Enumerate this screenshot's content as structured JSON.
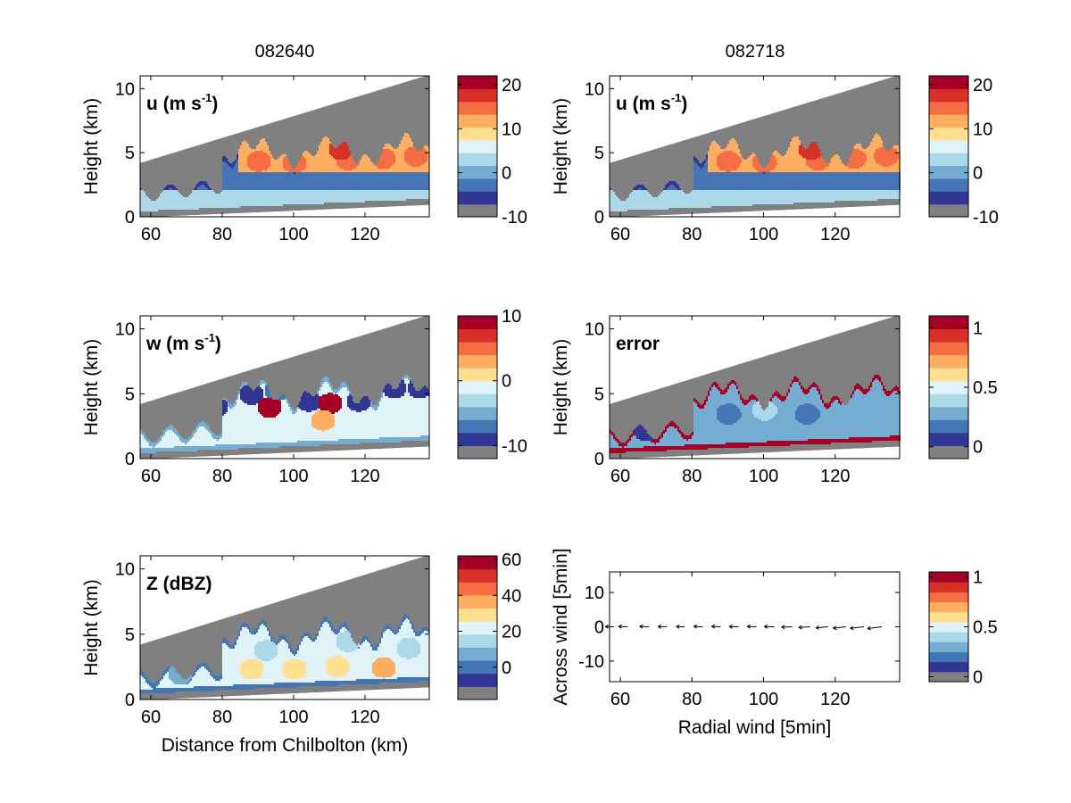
{
  "figure": {
    "column_titles": [
      "082640",
      "082718"
    ]
  },
  "palette": {
    "colormap_bottom_to_top": [
      "#808080",
      "#313695",
      "#4575b4",
      "#74add1",
      "#abd9e9",
      "#e0f3f8",
      "#fee090",
      "#fdae61",
      "#f46d43",
      "#d73027",
      "#a50026"
    ],
    "missing_gray": "#808080",
    "axes_color": "#000000",
    "background": "#ffffff"
  },
  "chart_data": [
    {
      "id": "u_left",
      "type": "heatmap",
      "column_title": "082640",
      "label": "u (m s",
      "label_sup": "-1",
      "label_end": ")",
      "ylabel": "Height (km)",
      "xlabel": "",
      "xlim": [
        57,
        138
      ],
      "ylim": [
        0,
        11
      ],
      "xticks": [
        "60",
        "80",
        "100",
        "120"
      ],
      "yticks": [
        "0",
        "5",
        "10"
      ],
      "colorbar": {
        "range": [
          -10,
          22
        ],
        "ticks": [
          "-10",
          "0",
          "10",
          "20"
        ]
      },
      "blob": {
        "base_level": 2,
        "contour_level": 1,
        "cores": [
          [
            90,
            4.4,
            7.5
          ],
          [
            100,
            4.3,
            7.5
          ],
          [
            115,
            4.5,
            8
          ],
          [
            125,
            4.6,
            7.5
          ],
          [
            134,
            4.8,
            7.5
          ],
          [
            113,
            5.3,
            9
          ]
        ]
      }
    },
    {
      "id": "u_right",
      "type": "heatmap",
      "column_title": "082718",
      "label": "u (m s",
      "label_sup": "-1",
      "label_end": ")",
      "ylabel": "Height (km)",
      "xlabel": "",
      "xlim": [
        57,
        138
      ],
      "ylim": [
        0,
        11
      ],
      "xticks": [
        "60",
        "80",
        "100",
        "120"
      ],
      "yticks": [
        "0",
        "5",
        "10"
      ],
      "colorbar": {
        "range": [
          -10,
          22
        ],
        "ticks": [
          "-10",
          "0",
          "10",
          "20"
        ]
      },
      "blob": {
        "base_level": 2,
        "contour_level": 1,
        "cores": [
          [
            90,
            4.4,
            7.5
          ],
          [
            100,
            4.3,
            7.5
          ],
          [
            115,
            4.5,
            8
          ],
          [
            125,
            4.6,
            7.5
          ],
          [
            134,
            4.8,
            7.5
          ],
          [
            113,
            5.3,
            9
          ]
        ]
      }
    },
    {
      "id": "w_left",
      "type": "heatmap",
      "label": "w (m s",
      "label_sup": "-1",
      "label_end": ")",
      "ylabel": "Height (km)",
      "xlabel": "",
      "xlim": [
        57,
        138
      ],
      "ylim": [
        0,
        11
      ],
      "xticks": [
        "60",
        "80",
        "100",
        "120"
      ],
      "yticks": [
        "0",
        "5",
        "10"
      ],
      "colorbar": {
        "range": [
          -12,
          10
        ],
        "ticks": [
          "-10",
          "0",
          "10"
        ]
      },
      "blob": {
        "base_level": 5,
        "contour_level": 3,
        "cores": [
          [
            68,
            3.4,
            2
          ],
          [
            78,
            4.0,
            1
          ],
          [
            88,
            5.0,
            1
          ],
          [
            95,
            5.3,
            2
          ],
          [
            104,
            4.5,
            1
          ],
          [
            110,
            4.3,
            10
          ],
          [
            118,
            4.5,
            1
          ],
          [
            128,
            5.5,
            1
          ],
          [
            135,
            5.5,
            1
          ],
          [
            93,
            4.0,
            10
          ],
          [
            108,
            3.0,
            7
          ]
        ]
      }
    },
    {
      "id": "error_right",
      "type": "heatmap",
      "label": "error",
      "ylabel": "Height (km)",
      "xlabel": "",
      "xlim": [
        57,
        138
      ],
      "ylim": [
        0,
        11
      ],
      "xticks": [
        "60",
        "80",
        "100",
        "120"
      ],
      "yticks": [
        "0",
        "5",
        "10"
      ],
      "colorbar": {
        "range": [
          -0.1,
          1.1
        ],
        "ticks": [
          "0",
          "0.5",
          "1"
        ]
      },
      "blob": {
        "base_level": 3,
        "contour_level": 10,
        "cores": [
          [
            67,
            2.2,
            1
          ],
          [
            90,
            3.5,
            2
          ],
          [
            100,
            3.8,
            4
          ],
          [
            112,
            3.5,
            2
          ],
          [
            125,
            4.0,
            3
          ],
          [
            134,
            3.8,
            3
          ]
        ]
      }
    },
    {
      "id": "z_left",
      "type": "heatmap",
      "label": "Z (dBZ)",
      "ylabel": "Height (km)",
      "xlabel": "Distance from Chilbolton (km)",
      "xlim": [
        57,
        138
      ],
      "ylim": [
        0,
        11
      ],
      "xticks": [
        "60",
        "80",
        "100",
        "120"
      ],
      "yticks": [
        "0",
        "5",
        "10"
      ],
      "colorbar": {
        "range": [
          -18,
          62
        ],
        "ticks": [
          "0",
          "20",
          "40",
          "60"
        ]
      },
      "blob": {
        "base_level": 5,
        "contour_level": 2,
        "cores": [
          [
            68,
            2.0,
            3
          ],
          [
            88,
            2.4,
            6
          ],
          [
            100,
            2.4,
            6
          ],
          [
            112,
            2.6,
            6
          ],
          [
            125,
            2.5,
            7
          ],
          [
            92,
            3.8,
            4
          ],
          [
            115,
            4.5,
            4
          ],
          [
            132,
            4.0,
            4
          ]
        ]
      }
    },
    {
      "id": "wind_right",
      "type": "scatter",
      "label": "",
      "ylabel": "Across wind [5min]",
      "xlabel": "Radial wind [5min]",
      "xlim": [
        57,
        138
      ],
      "ylim": [
        -16,
        16
      ],
      "xticks": [
        "60",
        "80",
        "100",
        "120"
      ],
      "yticks": [
        "-10",
        "0",
        "10"
      ],
      "colorbar": {
        "range": [
          -0.05,
          1.05
        ],
        "ticks": [
          "0",
          "0.5",
          "1"
        ]
      },
      "arrows": {
        "x": [
          58,
          62,
          68,
          73,
          78,
          83,
          88,
          93,
          98,
          103,
          108,
          113,
          118,
          123,
          128,
          133
        ],
        "y": 0,
        "u": [
          -2.2,
          -2.5,
          -2.6,
          -2.5,
          -2.4,
          -2.5,
          -2.5,
          -2.6,
          -2.6,
          -2.8,
          -3.0,
          -3.2,
          -3.4,
          -3.6,
          -3.8,
          -4.0
        ],
        "v": [
          0.05,
          0.1,
          0.1,
          0.05,
          0.05,
          0.1,
          0.1,
          0.05,
          0.1,
          0.05,
          -0.1,
          -0.2,
          -0.3,
          -0.4,
          -0.45,
          -0.5
        ]
      }
    }
  ]
}
